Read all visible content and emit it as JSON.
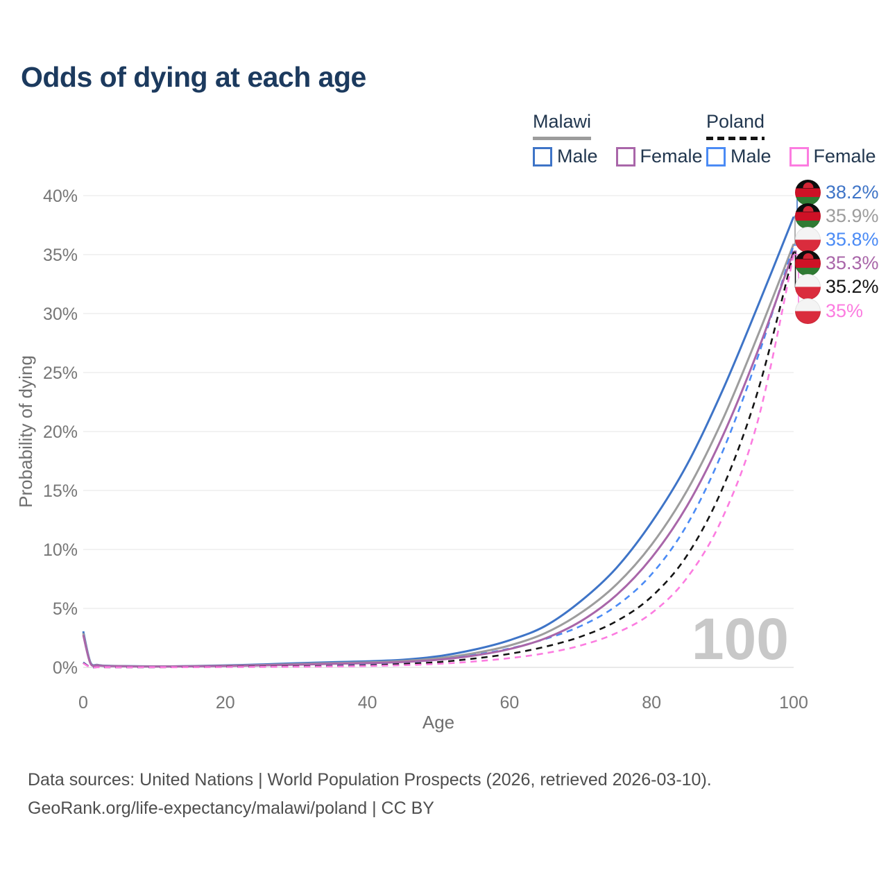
{
  "title": "Odds of dying at each age",
  "legend": {
    "malawi": {
      "name": "Malawi",
      "male": "Male",
      "female": "Female",
      "line_color": "#9c9c9c",
      "line_style": "solid"
    },
    "poland": {
      "name": "Poland",
      "male": "Male",
      "female": "Female",
      "line_color": "#141414",
      "line_style": "dashed"
    }
  },
  "watermark": "100",
  "source_line1": "Data sources: United Nations | World Population Prospects (2026, retrieved 2026-03-10).",
  "source_line2": "GeoRank.org/life-expectancy/malawi/poland | CC BY",
  "colors": {
    "title": "#1c3a5e",
    "axis_text": "#767676",
    "gridline": "#ededed",
    "baseline": "#e2e2e2",
    "watermark": "#c8c8c8",
    "malawi_male": "#3e74c7",
    "malawi_both": "#9d9d9d",
    "malawi_female": "#a966a9",
    "poland_male": "#4b8bf5",
    "poland_both": "#141414",
    "poland_female": "#fc7ce0"
  },
  "chart_data": {
    "type": "line",
    "title": "Odds of dying at each age",
    "xlabel": "Age",
    "ylabel": "Probability of dying",
    "xlim": [
      0,
      100
    ],
    "ylim": [
      0,
      40
    ],
    "x_ticks": [
      0,
      20,
      40,
      60,
      80,
      100
    ],
    "y_ticks": [
      "0%",
      "5%",
      "10%",
      "15%",
      "20%",
      "25%",
      "30%",
      "35%",
      "40%"
    ],
    "grid": "horizontal",
    "legend_position": "top-right",
    "x": [
      0,
      1,
      2,
      3,
      5,
      10,
      15,
      20,
      25,
      30,
      35,
      40,
      45,
      50,
      55,
      60,
      65,
      70,
      75,
      80,
      85,
      90,
      95,
      100
    ],
    "series": [
      {
        "name": "Malawi Male",
        "country": "malawi",
        "dashed": false,
        "color": "#3e74c7",
        "end_label": "38.2%",
        "values": [
          3.05,
          0.45,
          0.22,
          0.15,
          0.12,
          0.09,
          0.11,
          0.17,
          0.25,
          0.35,
          0.44,
          0.52,
          0.65,
          0.95,
          1.5,
          2.3,
          3.5,
          5.6,
          8.4,
          12.3,
          17.2,
          23.5,
          30.7,
          38.2
        ]
      },
      {
        "name": "Malawi Both sexes",
        "country": "malawi",
        "dashed": false,
        "color": "#9d9d9d",
        "end_label": "35.9%",
        "values": [
          2.9,
          0.4,
          0.2,
          0.13,
          0.11,
          0.08,
          0.1,
          0.14,
          0.2,
          0.28,
          0.36,
          0.43,
          0.54,
          0.78,
          1.2,
          1.85,
          2.9,
          4.6,
          7.0,
          10.4,
          15.0,
          21.0,
          28.2,
          35.9
        ]
      },
      {
        "name": "Poland Male",
        "country": "poland",
        "dashed": true,
        "color": "#4b8bf5",
        "end_label": "35.8%",
        "values": [
          0.42,
          0.03,
          0.02,
          0.015,
          0.01,
          0.012,
          0.035,
          0.07,
          0.09,
          0.12,
          0.17,
          0.25,
          0.4,
          0.65,
          1.05,
          1.6,
          2.4,
          3.5,
          5.2,
          7.9,
          12.1,
          18.3,
          26.4,
          35.8
        ]
      },
      {
        "name": "Malawi Female",
        "country": "malawi",
        "dashed": false,
        "color": "#a966a9",
        "end_label": "35.3%",
        "values": [
          2.75,
          0.36,
          0.18,
          0.12,
          0.1,
          0.07,
          0.09,
          0.12,
          0.17,
          0.23,
          0.3,
          0.36,
          0.46,
          0.65,
          1.0,
          1.55,
          2.45,
          3.9,
          6.1,
          9.3,
          13.7,
          19.6,
          26.9,
          35.3
        ]
      },
      {
        "name": "Poland Both sexes",
        "country": "poland",
        "dashed": true,
        "color": "#141414",
        "end_label": "35.2%",
        "values": [
          0.38,
          0.025,
          0.018,
          0.012,
          0.009,
          0.01,
          0.025,
          0.05,
          0.065,
          0.085,
          0.12,
          0.17,
          0.28,
          0.45,
          0.75,
          1.15,
          1.75,
          2.6,
          3.9,
          6.0,
          9.5,
          15.2,
          23.5,
          35.2
        ]
      },
      {
        "name": "Poland Female",
        "country": "poland",
        "dashed": true,
        "color": "#fc7ce0",
        "end_label": "35%",
        "values": [
          0.35,
          0.02,
          0.015,
          0.01,
          0.008,
          0.009,
          0.018,
          0.03,
          0.04,
          0.055,
          0.08,
          0.12,
          0.19,
          0.3,
          0.5,
          0.78,
          1.2,
          1.85,
          2.9,
          4.6,
          7.6,
          12.7,
          21.0,
          35.0
        ]
      }
    ]
  }
}
